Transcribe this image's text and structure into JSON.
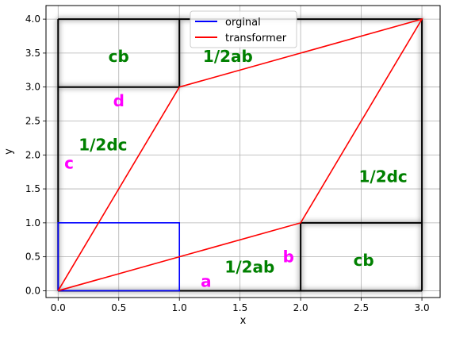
{
  "chart_data": {
    "type": "line",
    "xlabel": "x",
    "ylabel": "y",
    "xlim": [
      -0.1,
      3.15
    ],
    "ylim": [
      -0.1,
      4.2
    ],
    "xticks": [
      0.0,
      0.5,
      1.0,
      1.5,
      2.0,
      2.5,
      3.0
    ],
    "xtick_labels": [
      "0.0",
      "0.5",
      "1.0",
      "1.5",
      "2.0",
      "2.5",
      "3.0"
    ],
    "yticks": [
      0.0,
      0.5,
      1.0,
      1.5,
      2.0,
      2.5,
      3.0,
      3.5,
      4.0
    ],
    "ytick_labels": [
      "0.0",
      "0.5",
      "1.0",
      "1.5",
      "2.0",
      "2.5",
      "3.0",
      "3.5",
      "4.0"
    ],
    "grid": true,
    "legend_position": "top-center",
    "series": [
      {
        "name": "orginal",
        "color": "#0000ff",
        "points": [
          [
            0,
            0
          ],
          [
            1,
            0
          ],
          [
            1,
            1
          ],
          [
            0,
            1
          ],
          [
            0,
            0
          ]
        ]
      },
      {
        "name": "transformer",
        "color": "#ff0000",
        "points": [
          [
            0,
            0
          ],
          [
            2,
            1
          ],
          [
            3,
            4
          ],
          [
            1,
            3
          ],
          [
            0,
            0
          ]
        ]
      }
    ],
    "outline_segments": {
      "color": "#000000",
      "segments": [
        [
          [
            0,
            0
          ],
          [
            3,
            0
          ]
        ],
        [
          [
            3,
            0
          ],
          [
            3,
            4
          ]
        ],
        [
          [
            3,
            4
          ],
          [
            0,
            4
          ]
        ],
        [
          [
            0,
            4
          ],
          [
            0,
            0
          ]
        ],
        [
          [
            0,
            3
          ],
          [
            1,
            3
          ]
        ],
        [
          [
            1,
            3
          ],
          [
            1,
            4
          ]
        ],
        [
          [
            2,
            0
          ],
          [
            2,
            1
          ]
        ],
        [
          [
            2,
            1
          ],
          [
            3,
            1
          ]
        ]
      ]
    },
    "annotations": [
      {
        "text": "cb",
        "x": 0.5,
        "y": 3.45,
        "color": "#008000",
        "size": "large"
      },
      {
        "text": "1/2ab",
        "x": 1.4,
        "y": 3.45,
        "color": "#008000",
        "size": "large"
      },
      {
        "text": "d",
        "x": 0.5,
        "y": 2.8,
        "color": "#ff00ff",
        "size": "large"
      },
      {
        "text": "1/2dc",
        "x": 0.37,
        "y": 2.15,
        "color": "#008000",
        "size": "large"
      },
      {
        "text": "c",
        "x": 0.09,
        "y": 1.88,
        "color": "#ff00ff",
        "size": "large"
      },
      {
        "text": "1/2dc",
        "x": 2.68,
        "y": 1.68,
        "color": "#008000",
        "size": "large"
      },
      {
        "text": "b",
        "x": 1.9,
        "y": 0.5,
        "color": "#ff00ff",
        "size": "large"
      },
      {
        "text": "cb",
        "x": 2.52,
        "y": 0.45,
        "color": "#008000",
        "size": "large"
      },
      {
        "text": "1/2ab",
        "x": 1.58,
        "y": 0.35,
        "color": "#008000",
        "size": "large"
      },
      {
        "text": "a",
        "x": 1.22,
        "y": 0.14,
        "color": "#ff00ff",
        "size": "large"
      }
    ]
  }
}
